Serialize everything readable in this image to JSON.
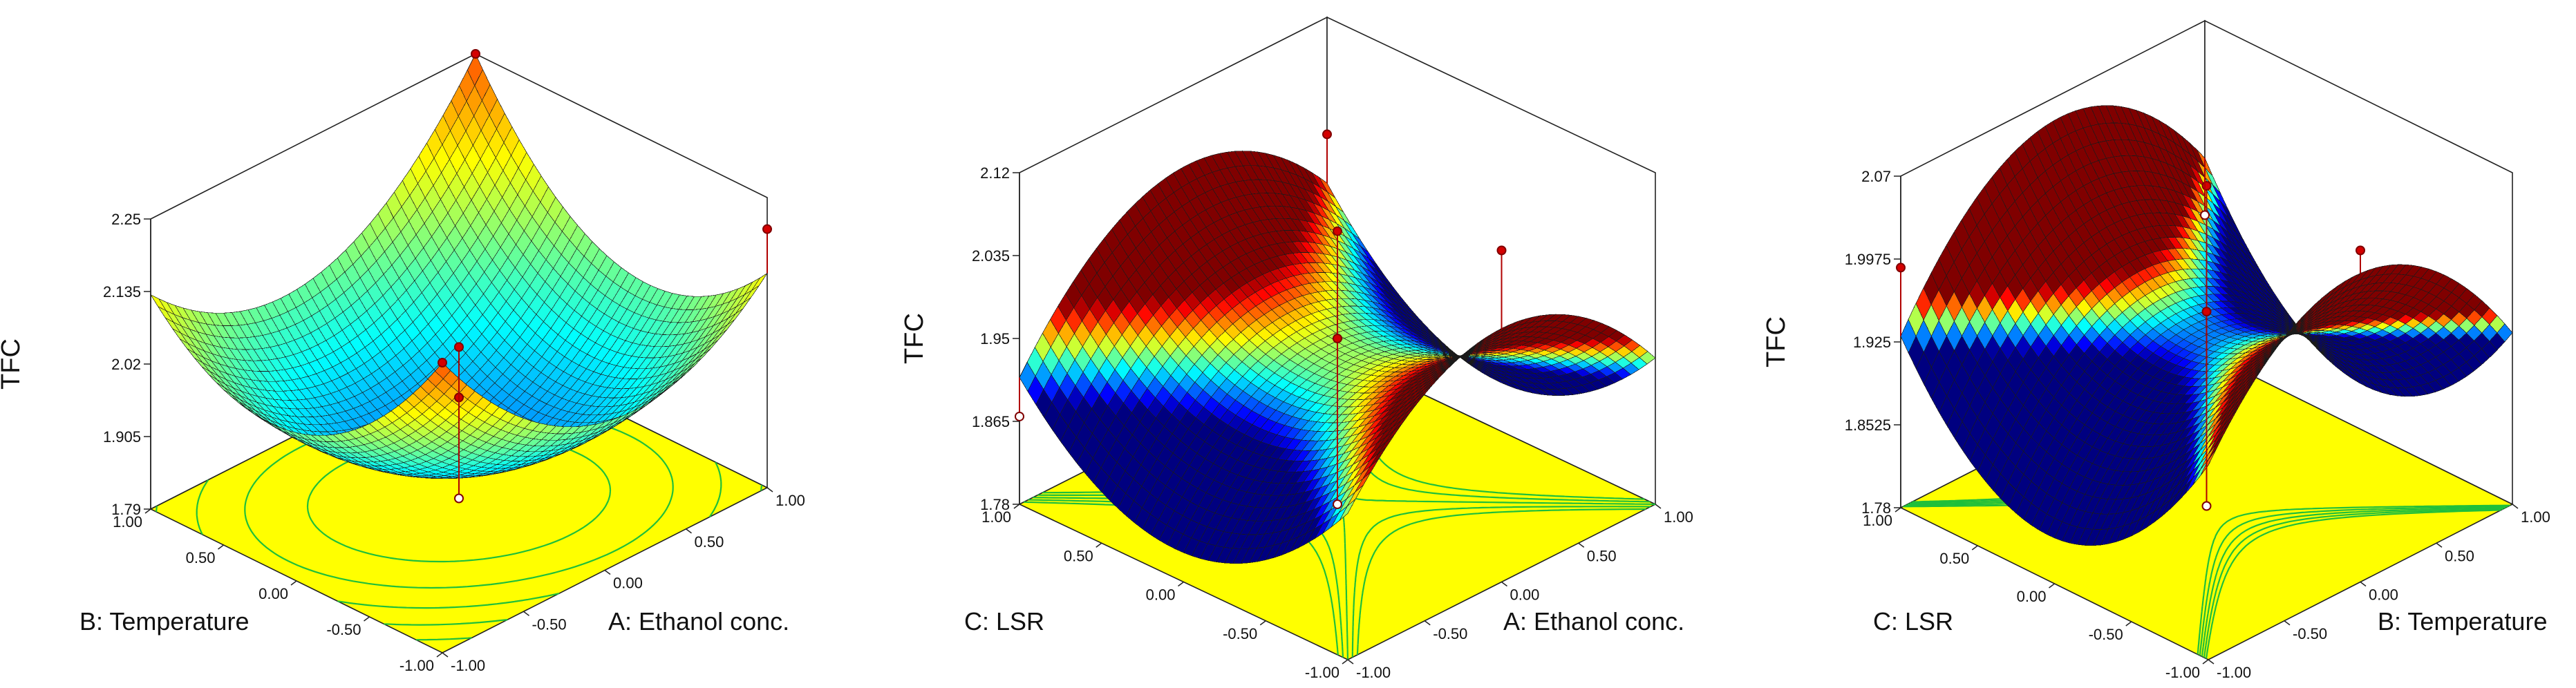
{
  "chart_data": [
    {
      "type": "surface",
      "zlabel": "TFC",
      "xlabel": "A: Ethanol conc.",
      "ylabel": "B: Temperature",
      "z_ticks": [
        "1.79",
        "1.905",
        "2.02",
        "2.135",
        "2.25"
      ],
      "x_ticks": [
        "-1.00",
        "-0.50",
        "0.00",
        "0.50",
        "1.00"
      ],
      "y_ticks": [
        "-1.00",
        "-0.50",
        "0.00",
        "0.50",
        "1.00"
      ],
      "zlim": [
        1.79,
        2.25
      ],
      "xlim": [
        -1,
        1
      ],
      "ylim": [
        -1,
        1
      ],
      "model": {
        "c": 1.86,
        "a": 0.0,
        "b": 0.0,
        "ab": 0.06,
        "aa": 0.165,
        "bb": 0.165
      },
      "design_points": [
        {
          "x": 0,
          "y": 0,
          "z": 1.95
        },
        {
          "x": 0,
          "y": 0,
          "z": 2.03
        },
        {
          "x": 0,
          "y": 0,
          "z": 1.79
        },
        {
          "x": 1,
          "y": 1,
          "z": 2.25
        },
        {
          "x": -1,
          "y": -1,
          "z": 2.25
        },
        {
          "x": 1,
          "y": -1,
          "z": 2.2
        }
      ]
    },
    {
      "type": "surface",
      "zlabel": "TFC",
      "xlabel": "A: Ethanol conc.",
      "ylabel": "C: LSR",
      "z_ticks": [
        "1.78",
        "1.865",
        "1.95",
        "2.035",
        "2.12"
      ],
      "x_ticks": [
        "-1.00",
        "-0.50",
        "0.00",
        "0.50",
        "1.00"
      ],
      "y_ticks": [
        "-1.00",
        "-0.50",
        "0.00",
        "0.50",
        "1.00"
      ],
      "zlim": [
        1.78,
        2.12
      ],
      "xlim": [
        -1,
        1
      ],
      "ylim": [
        -1,
        1
      ],
      "model": {
        "c": 1.93,
        "a": 0.01,
        "b": 0.0,
        "ab": 0.01,
        "aa": -0.11,
        "bb": 0.11
      },
      "design_points": [
        {
          "x": 0,
          "y": 0,
          "z": 2.06
        },
        {
          "x": 0,
          "y": 0,
          "z": 1.95
        },
        {
          "x": 0,
          "y": 0,
          "z": 1.78
        },
        {
          "x": 0,
          "y": -1,
          "z": 2.12
        },
        {
          "x": 1,
          "y": 1,
          "z": 2.0
        },
        {
          "x": -1,
          "y": 1,
          "z": 1.87
        }
      ]
    },
    {
      "type": "surface",
      "zlabel": "TFC",
      "xlabel": "B: Temperature",
      "ylabel": "C: LSR",
      "z_ticks": [
        "1.78",
        "1.8525",
        "1.925",
        "1.9975",
        "2.07"
      ],
      "x_ticks": [
        "-1.00",
        "-0.50",
        "0.00",
        "0.50",
        "1.00"
      ],
      "y_ticks": [
        "-1.00",
        "-0.50",
        "0.00",
        "0.50",
        "1.00"
      ],
      "zlim": [
        1.78,
        2.07
      ],
      "xlim": [
        -1,
        1
      ],
      "ylim": [
        -1,
        1
      ],
      "model": {
        "c": 1.93,
        "a": 0.0,
        "b": 0.0,
        "ab": 0.01,
        "aa": -0.11,
        "bb": 0.12
      },
      "design_points": [
        {
          "x": 0,
          "y": 0,
          "z": 2.06
        },
        {
          "x": 0,
          "y": 0,
          "z": 1.95
        },
        {
          "x": 0,
          "y": 0,
          "z": 1.78
        },
        {
          "x": 0,
          "y": -1,
          "z": 2.07
        },
        {
          "x": 1,
          "y": 1,
          "z": 1.9
        },
        {
          "x": -1,
          "y": 1,
          "z": 1.99
        }
      ]
    }
  ]
}
